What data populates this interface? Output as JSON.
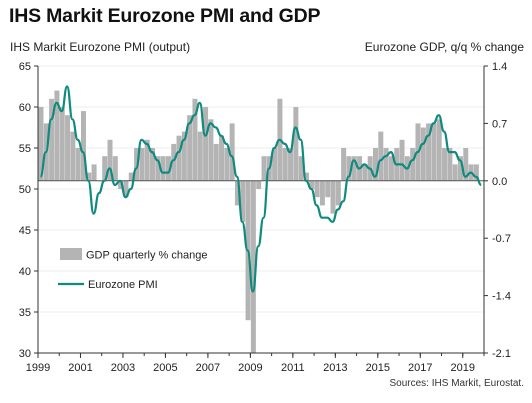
{
  "chart_data": {
    "type": "bar+line",
    "title": "IHS Markit Eurozone PMI and GDP",
    "ylabel_left": "IHS Markit Eurozone PMI (output)",
    "ylabel_right": "Eurozone GDP, q/q % change",
    "source": "Sources: IHS Markit, Eurostat.",
    "y_left": {
      "range": [
        30,
        65
      ],
      "ticks": [
        "30",
        "35",
        "40",
        "45",
        "50",
        "55",
        "60",
        "65"
      ]
    },
    "y_right": {
      "range": [
        -2.1,
        1.4
      ],
      "ticks": [
        "-2.1",
        "-1.4",
        "-0.7",
        "0.0",
        "0.7",
        "1.4"
      ]
    },
    "x_ticks": [
      "1999",
      "2001",
      "2003",
      "2005",
      "2007",
      "2009",
      "2011",
      "2013",
      "2015",
      "2017",
      "2019"
    ],
    "x_range": [
      1999.0,
      2020.0
    ],
    "colors": {
      "bars": "#b4b4b4",
      "line": "#0f8a7e",
      "axis": "#333333"
    },
    "legend": {
      "position": "lower-left",
      "gdp_label": "GDP quarterly % change",
      "pmi_label": "Eurozone PMI"
    },
    "series": [
      {
        "name": "GDP quarterly % change",
        "type": "bar",
        "axis": "right",
        "x": [
          1999.0,
          1999.25,
          1999.5,
          1999.75,
          2000.0,
          2000.25,
          2000.5,
          2000.75,
          2001.0,
          2001.25,
          2001.5,
          2001.75,
          2002.0,
          2002.25,
          2002.5,
          2002.75,
          2003.0,
          2003.25,
          2003.5,
          2003.75,
          2004.0,
          2004.25,
          2004.5,
          2004.75,
          2005.0,
          2005.25,
          2005.5,
          2005.75,
          2006.0,
          2006.25,
          2006.5,
          2006.75,
          2007.0,
          2007.25,
          2007.5,
          2007.75,
          2008.0,
          2008.25,
          2008.5,
          2008.75,
          2009.0,
          2009.25,
          2009.5,
          2009.75,
          2010.0,
          2010.25,
          2010.5,
          2010.75,
          2011.0,
          2011.25,
          2011.5,
          2011.75,
          2012.0,
          2012.25,
          2012.5,
          2012.75,
          2013.0,
          2013.25,
          2013.5,
          2013.75,
          2014.0,
          2014.25,
          2014.5,
          2014.75,
          2015.0,
          2015.25,
          2015.5,
          2015.75,
          2016.0,
          2016.25,
          2016.5,
          2016.75,
          2017.0,
          2017.25,
          2017.5,
          2017.75,
          2018.0,
          2018.25,
          2018.5,
          2018.75,
          2019.0,
          2019.25,
          2019.5
        ],
        "values": [
          0.9,
          0.7,
          1.0,
          1.1,
          0.9,
          0.8,
          0.6,
          0.4,
          0.85,
          0.1,
          0.2,
          0.0,
          0.3,
          0.5,
          0.3,
          -0.1,
          -0.2,
          0.1,
          0.4,
          0.4,
          0.5,
          0.4,
          0.3,
          0.3,
          0.3,
          0.45,
          0.55,
          0.6,
          0.8,
          1.0,
          0.6,
          0.9,
          0.75,
          0.45,
          0.55,
          0.4,
          0.7,
          -0.3,
          -0.5,
          -1.7,
          -2.1,
          -0.1,
          0.3,
          0.3,
          0.4,
          1.0,
          0.4,
          0.4,
          0.9,
          0.3,
          0.1,
          -0.1,
          -0.2,
          -0.3,
          -0.2,
          -0.4,
          -0.3,
          0.4,
          0.3,
          0.3,
          0.3,
          0.2,
          0.3,
          0.4,
          0.6,
          0.4,
          0.3,
          0.4,
          0.5,
          0.3,
          0.4,
          0.7,
          0.65,
          0.7,
          0.7,
          0.75,
          0.4,
          0.4,
          0.2,
          0.3,
          0.4,
          0.2,
          0.2
        ]
      },
      {
        "name": "Eurozone PMI",
        "type": "line",
        "axis": "left",
        "x": [
          1999.0,
          1999.25,
          1999.5,
          1999.75,
          2000.0,
          2000.25,
          2000.5,
          2000.75,
          2001.0,
          2001.25,
          2001.5,
          2001.75,
          2002.0,
          2002.25,
          2002.5,
          2002.75,
          2003.0,
          2003.25,
          2003.5,
          2003.75,
          2004.0,
          2004.25,
          2004.5,
          2004.75,
          2005.0,
          2005.25,
          2005.5,
          2005.75,
          2006.0,
          2006.25,
          2006.5,
          2006.75,
          2007.0,
          2007.25,
          2007.5,
          2007.75,
          2008.0,
          2008.25,
          2008.5,
          2008.75,
          2009.0,
          2009.25,
          2009.5,
          2009.75,
          2010.0,
          2010.25,
          2010.5,
          2010.75,
          2011.0,
          2011.25,
          2011.5,
          2011.75,
          2012.0,
          2012.25,
          2012.5,
          2012.75,
          2013.0,
          2013.25,
          2013.5,
          2013.75,
          2014.0,
          2014.25,
          2014.5,
          2014.75,
          2015.0,
          2015.25,
          2015.5,
          2015.75,
          2016.0,
          2016.25,
          2016.5,
          2016.75,
          2017.0,
          2017.25,
          2017.5,
          2017.75,
          2018.0,
          2018.25,
          2018.5,
          2018.75,
          2019.0,
          2019.25,
          2019.5,
          2019.75
        ],
        "values": [
          51.5,
          54.5,
          58.5,
          60.5,
          59.5,
          62.5,
          58.5,
          56.0,
          54.5,
          51.0,
          47.0,
          49.5,
          51.0,
          52.5,
          50.5,
          51.0,
          49.0,
          50.0,
          52.5,
          56.0,
          55.5,
          54.5,
          53.5,
          52.0,
          52.0,
          53.5,
          54.5,
          56.0,
          58.0,
          59.0,
          60.5,
          56.5,
          58.0,
          57.5,
          56.5,
          55.5,
          54.0,
          51.5,
          46.0,
          42.5,
          37.5,
          43.0,
          46.5,
          52.5,
          55.0,
          56.0,
          55.5,
          54.5,
          57.5,
          56.0,
          51.0,
          50.0,
          48.0,
          46.5,
          46.5,
          46.0,
          47.5,
          48.5,
          51.5,
          53.5,
          52.5,
          53.0,
          52.5,
          51.5,
          53.5,
          54.0,
          54.5,
          53.0,
          53.0,
          52.5,
          53.5,
          54.5,
          55.5,
          56.5,
          58.0,
          59.0,
          57.0,
          54.5,
          54.5,
          53.5,
          51.5,
          52.0,
          51.5,
          50.5
        ]
      }
    ]
  }
}
